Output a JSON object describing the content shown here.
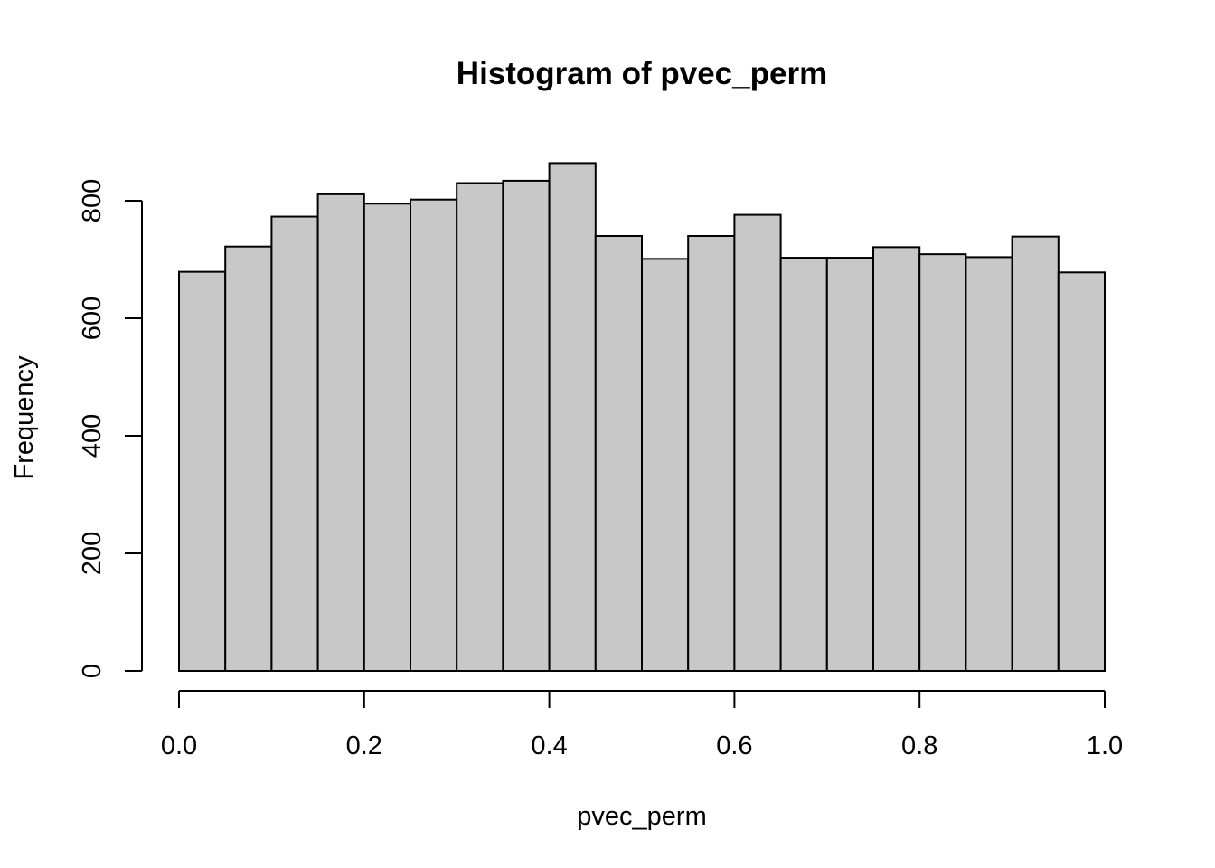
{
  "chart_data": {
    "type": "bar",
    "title": "Histogram of pvec_perm",
    "xlabel": "pvec_perm",
    "ylabel": "Frequency",
    "bin_edges": [
      0.0,
      0.05,
      0.1,
      0.15,
      0.2,
      0.25,
      0.3,
      0.35,
      0.4,
      0.45,
      0.5,
      0.55,
      0.6,
      0.65,
      0.7,
      0.75,
      0.8,
      0.85,
      0.9,
      0.95,
      1.0
    ],
    "values": [
      679,
      722,
      773,
      811,
      795,
      802,
      830,
      834,
      864,
      740,
      701,
      740,
      776,
      703,
      703,
      721,
      709,
      704,
      739,
      678
    ],
    "xlim": [
      0,
      1
    ],
    "ylim": [
      0,
      900
    ],
    "x_ticks": [
      0.0,
      0.2,
      0.4,
      0.6,
      0.8,
      1.0
    ],
    "x_tick_labels": [
      "0.0",
      "0.2",
      "0.4",
      "0.6",
      "0.8",
      "1.0"
    ],
    "y_ticks": [
      0,
      200,
      400,
      600,
      800
    ],
    "y_tick_labels": [
      "0",
      "200",
      "400",
      "600",
      "800"
    ],
    "bar_fill": "#c8c8c8",
    "bar_stroke": "#000000",
    "grid": false,
    "legend": "none"
  }
}
